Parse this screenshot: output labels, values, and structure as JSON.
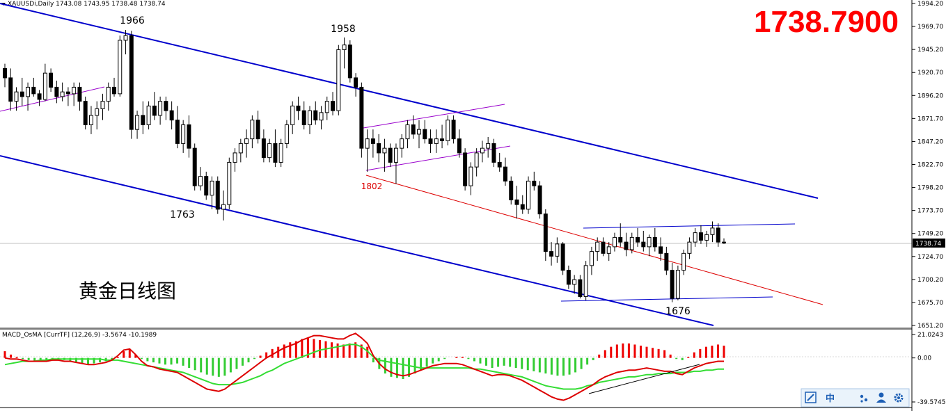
{
  "header": {
    "symbol_line": "XAUUSDi,Daily  1743.08 1743.95 1738.48 1738.74"
  },
  "overlay": {
    "big_price": "1738.7900",
    "cn_title": "黄金日线图"
  },
  "price_axis": {
    "ticks": [
      "1994.20",
      "1969.70",
      "1945.20",
      "1920.70",
      "1896.20",
      "1871.70",
      "1847.20",
      "1822.70",
      "1798.20",
      "1773.70",
      "1749.20",
      "1724.70",
      "1700.20",
      "1675.70",
      "1651.20"
    ],
    "current_label": "1738.74",
    "current_price": 1738.74
  },
  "macd_axis": {
    "ticks": [
      "21.0243",
      "0.00",
      "-39.5745"
    ]
  },
  "macd_header": "MACD_OsMA [CurrTF] (12,26,9) -3.5674 -10.1989",
  "annotations": {
    "peak_1966": "1966",
    "peak_1958": "1958",
    "low_1763": "1763",
    "low_1676": "1676",
    "level_1802": "1802"
  },
  "colors": {
    "channel": "#0000cc",
    "purple": "#9900cc",
    "red_trend": "#dd0000",
    "hist_pos": "#ee0000",
    "hist_neg": "#33cc33",
    "macd_line": "#dd0000",
    "signal_line": "#33dd33"
  },
  "toolbar": {
    "icons": [
      "trendline-icon",
      "chinese-input-icon",
      "moon-icon",
      "settings-dots-icon",
      "user-icon",
      "gear-icon"
    ],
    "labels": [
      "",
      "中",
      "",
      "",
      "",
      ""
    ]
  },
  "chart_data": [
    {
      "type": "candlestick",
      "title": "XAUUSDi,Daily",
      "ylim": [
        1651.2,
        1994.2
      ],
      "candles": [
        [
          1925,
          1930,
          1905,
          1915
        ],
        [
          1915,
          1925,
          1880,
          1890
        ],
        [
          1890,
          1905,
          1880,
          1900
        ],
        [
          1900,
          1915,
          1885,
          1895
        ],
        [
          1895,
          1910,
          1880,
          1905
        ],
        [
          1905,
          1915,
          1895,
          1898
        ],
        [
          1898,
          1902,
          1885,
          1892
        ],
        [
          1892,
          1930,
          1890,
          1920
        ],
        [
          1920,
          1925,
          1900,
          1905
        ],
        [
          1905,
          1912,
          1888,
          1895
        ],
        [
          1895,
          1910,
          1890,
          1900
        ],
        [
          1900,
          1905,
          1885,
          1898
        ],
        [
          1898,
          1910,
          1885,
          1905
        ],
        [
          1905,
          1910,
          1880,
          1890
        ],
        [
          1890,
          1895,
          1860,
          1865
        ],
        [
          1865,
          1885,
          1855,
          1875
        ],
        [
          1875,
          1890,
          1860,
          1882
        ],
        [
          1882,
          1898,
          1870,
          1890
        ],
        [
          1890,
          1910,
          1880,
          1905
        ],
        [
          1905,
          1915,
          1895,
          1898
        ],
        [
          1898,
          1960,
          1895,
          1955
        ],
        [
          1955,
          1966,
          1940,
          1960
        ],
        [
          1960,
          1965,
          1850,
          1860
        ],
        [
          1860,
          1880,
          1850,
          1875
        ],
        [
          1875,
          1890,
          1855,
          1865
        ],
        [
          1865,
          1890,
          1860,
          1885
        ],
        [
          1885,
          1900,
          1870,
          1875
        ],
        [
          1875,
          1895,
          1865,
          1890
        ],
        [
          1890,
          1895,
          1870,
          1880
        ],
        [
          1880,
          1890,
          1860,
          1870
        ],
        [
          1870,
          1885,
          1840,
          1845
        ],
        [
          1845,
          1870,
          1835,
          1865
        ],
        [
          1865,
          1875,
          1830,
          1840
        ],
        [
          1840,
          1845,
          1795,
          1800
        ],
        [
          1800,
          1820,
          1795,
          1810
        ],
        [
          1810,
          1815,
          1785,
          1790
        ],
        [
          1790,
          1810,
          1775,
          1805
        ],
        [
          1805,
          1810,
          1770,
          1775
        ],
        [
          1775,
          1795,
          1763,
          1780
        ],
        [
          1780,
          1830,
          1775,
          1825
        ],
        [
          1825,
          1840,
          1815,
          1835
        ],
        [
          1835,
          1850,
          1825,
          1845
        ],
        [
          1845,
          1860,
          1830,
          1850
        ],
        [
          1850,
          1875,
          1840,
          1870
        ],
        [
          1870,
          1880,
          1845,
          1850
        ],
        [
          1850,
          1860,
          1825,
          1830
        ],
        [
          1830,
          1850,
          1825,
          1845
        ],
        [
          1845,
          1860,
          1820,
          1825
        ],
        [
          1825,
          1850,
          1820,
          1845
        ],
        [
          1845,
          1870,
          1840,
          1865
        ],
        [
          1865,
          1890,
          1855,
          1885
        ],
        [
          1885,
          1895,
          1870,
          1880
        ],
        [
          1880,
          1890,
          1860,
          1865
        ],
        [
          1865,
          1885,
          1855,
          1880
        ],
        [
          1880,
          1890,
          1865,
          1870
        ],
        [
          1870,
          1885,
          1860,
          1878
        ],
        [
          1878,
          1895,
          1870,
          1890
        ],
        [
          1890,
          1900,
          1875,
          1880
        ],
        [
          1880,
          1950,
          1875,
          1945
        ],
        [
          1945,
          1958,
          1925,
          1950
        ],
        [
          1950,
          1955,
          1910,
          1915
        ],
        [
          1915,
          1920,
          1895,
          1905
        ],
        [
          1905,
          1910,
          1830,
          1840
        ],
        [
          1840,
          1860,
          1815,
          1850
        ],
        [
          1850,
          1860,
          1830,
          1845
        ],
        [
          1845,
          1855,
          1825,
          1835
        ],
        [
          1835,
          1850,
          1815,
          1840
        ],
        [
          1840,
          1845,
          1820,
          1825
        ],
        [
          1825,
          1845,
          1802,
          1840
        ],
        [
          1840,
          1855,
          1830,
          1850
        ],
        [
          1850,
          1870,
          1840,
          1865
        ],
        [
          1865,
          1875,
          1850,
          1855
        ],
        [
          1855,
          1870,
          1840,
          1860
        ],
        [
          1860,
          1870,
          1845,
          1850
        ],
        [
          1850,
          1860,
          1835,
          1845
        ],
        [
          1845,
          1860,
          1835,
          1850
        ],
        [
          1850,
          1865,
          1840,
          1848
        ],
        [
          1848,
          1875,
          1843,
          1870
        ],
        [
          1870,
          1875,
          1845,
          1850
        ],
        [
          1850,
          1860,
          1830,
          1835
        ],
        [
          1835,
          1840,
          1795,
          1800
        ],
        [
          1800,
          1825,
          1790,
          1820
        ],
        [
          1820,
          1840,
          1810,
          1835
        ],
        [
          1835,
          1848,
          1825,
          1840
        ],
        [
          1840,
          1852,
          1830,
          1845
        ],
        [
          1845,
          1850,
          1820,
          1825
        ],
        [
          1825,
          1835,
          1815,
          1820
        ],
        [
          1820,
          1830,
          1800,
          1805
        ],
        [
          1805,
          1810,
          1780,
          1785
        ],
        [
          1785,
          1800,
          1765,
          1780
        ],
        [
          1780,
          1790,
          1770,
          1775
        ],
        [
          1775,
          1810,
          1770,
          1805
        ],
        [
          1805,
          1815,
          1795,
          1800
        ],
        [
          1800,
          1805,
          1765,
          1770
        ],
        [
          1770,
          1775,
          1720,
          1730
        ],
        [
          1730,
          1740,
          1715,
          1725
        ],
        [
          1725,
          1745,
          1718,
          1738
        ],
        [
          1738,
          1740,
          1705,
          1710
        ],
        [
          1710,
          1715,
          1690,
          1695
        ],
        [
          1695,
          1705,
          1685,
          1700
        ],
        [
          1700,
          1705,
          1680,
          1682
        ],
        [
          1682,
          1720,
          1678,
          1715
        ],
        [
          1715,
          1735,
          1705,
          1730
        ],
        [
          1730,
          1745,
          1720,
          1740
        ],
        [
          1740,
          1745,
          1725,
          1728
        ],
        [
          1728,
          1740,
          1720,
          1735
        ],
        [
          1735,
          1750,
          1730,
          1745
        ],
        [
          1745,
          1760,
          1735,
          1740
        ],
        [
          1740,
          1750,
          1725,
          1732
        ],
        [
          1732,
          1750,
          1728,
          1745
        ],
        [
          1745,
          1755,
          1735,
          1740
        ],
        [
          1740,
          1752,
          1730,
          1735
        ],
        [
          1735,
          1748,
          1725,
          1745
        ],
        [
          1745,
          1755,
          1730,
          1735
        ],
        [
          1735,
          1745,
          1720,
          1728
        ],
        [
          1728,
          1735,
          1705,
          1710
        ],
        [
          1710,
          1718,
          1676,
          1680
        ],
        [
          1680,
          1715,
          1678,
          1710
        ],
        [
          1710,
          1732,
          1705,
          1728
        ],
        [
          1728,
          1745,
          1722,
          1740
        ],
        [
          1740,
          1755,
          1735,
          1750
        ],
        [
          1750,
          1758,
          1738,
          1742
        ],
        [
          1742,
          1752,
          1735,
          1748
        ],
        [
          1748,
          1762,
          1740,
          1755
        ],
        [
          1755,
          1760,
          1735,
          1740
        ],
        [
          1740,
          1744,
          1738,
          1739
        ]
      ]
    },
    {
      "type": "macd",
      "title": "MACD_OsMA [CurrTF] (12,26,9)",
      "ylim": [
        -39.5745,
        21.0243
      ],
      "histogram": [
        6,
        3,
        1,
        -1,
        -2,
        -3,
        -3,
        -2,
        -1,
        -1,
        -2,
        -3,
        -4,
        -5,
        -6,
        -5,
        -4,
        -3,
        -2,
        1,
        6,
        8,
        3,
        -1,
        -3,
        -4,
        -5,
        -6,
        -6,
        -5,
        -7,
        -9,
        -11,
        -13,
        -15,
        -16,
        -17,
        -16,
        -13,
        -10,
        -7,
        -4,
        -1,
        2,
        5,
        8,
        10,
        12,
        14,
        15,
        17,
        18,
        17,
        16,
        15,
        14,
        13,
        12,
        13,
        14,
        12,
        10,
        -4,
        -10,
        -14,
        -17,
        -18,
        -19,
        -17,
        -14,
        -11,
        -8,
        -5,
        -3,
        -1,
        0,
        1,
        1,
        -1,
        -3,
        -5,
        -7,
        -9,
        -8,
        -7,
        -8,
        -9,
        -10,
        -11,
        -12,
        -13,
        -14,
        -15,
        -16,
        -16,
        -15,
        -13,
        -10,
        -6,
        -2,
        3,
        7,
        10,
        12,
        13,
        13,
        12,
        11,
        10,
        9,
        8,
        7,
        3,
        -1,
        -2,
        1,
        5,
        8,
        10,
        11,
        12,
        11
      ],
      "macd": [
        0,
        -1,
        -1,
        -2,
        -3,
        -3,
        -3,
        -3,
        -2,
        -2,
        -3,
        -3,
        -4,
        -5,
        -6,
        -6,
        -5,
        -4,
        -2,
        2,
        7,
        8,
        3,
        -3,
        -7,
        -8,
        -10,
        -11,
        -12,
        -13,
        -16,
        -19,
        -22,
        -25,
        -28,
        -29,
        -30,
        -28,
        -24,
        -20,
        -16,
        -12,
        -8,
        -4,
        0,
        3,
        6,
        9,
        11,
        13,
        16,
        18,
        20,
        20,
        19,
        18,
        17,
        17,
        20,
        22,
        18,
        13,
        2,
        -5,
        -10,
        -13,
        -15,
        -16,
        -15,
        -13,
        -11,
        -9,
        -7,
        -6,
        -5,
        -5,
        -5,
        -6,
        -8,
        -10,
        -12,
        -14,
        -16,
        -15,
        -15,
        -16,
        -18,
        -20,
        -23,
        -26,
        -29,
        -32,
        -35,
        -37,
        -38,
        -36,
        -33,
        -30,
        -27,
        -24,
        -20,
        -17,
        -15,
        -13,
        -12,
        -11,
        -11,
        -10,
        -9,
        -10,
        -11,
        -12,
        -12,
        -14,
        -15,
        -12,
        -9,
        -7,
        -5,
        -4,
        -3,
        -3
      ],
      "signal": [
        -6,
        -5,
        -4,
        -3,
        -3,
        -3,
        -2,
        -2,
        -1,
        -1,
        -1,
        -1,
        -1,
        -1,
        -1,
        -1,
        -1,
        -2,
        -2,
        -2,
        -3,
        -4,
        -5,
        -6,
        -7,
        -8,
        -9,
        -10,
        -11,
        -12,
        -13,
        -15,
        -17,
        -19,
        -21,
        -23,
        -24,
        -24,
        -24,
        -23,
        -22,
        -20,
        -18,
        -16,
        -13,
        -11,
        -8,
        -5,
        -3,
        -1,
        1,
        3,
        5,
        7,
        8,
        9,
        10,
        11,
        12,
        12,
        10,
        6,
        1,
        -2,
        -3,
        -4,
        -5,
        -6,
        -7,
        -8,
        -9,
        -9,
        -9,
        -9,
        -9,
        -9,
        -9,
        -9,
        -9,
        -10,
        -10,
        -11,
        -12,
        -13,
        -14,
        -15,
        -16,
        -17,
        -19,
        -21,
        -23,
        -25,
        -26,
        -27,
        -28,
        -28,
        -28,
        -27,
        -25,
        -24,
        -22,
        -21,
        -20,
        -19,
        -18,
        -17,
        -17,
        -16,
        -15,
        -15,
        -14,
        -14,
        -14,
        -13,
        -13,
        -13,
        -12,
        -12,
        -11,
        -11,
        -10,
        -10
      ]
    }
  ]
}
